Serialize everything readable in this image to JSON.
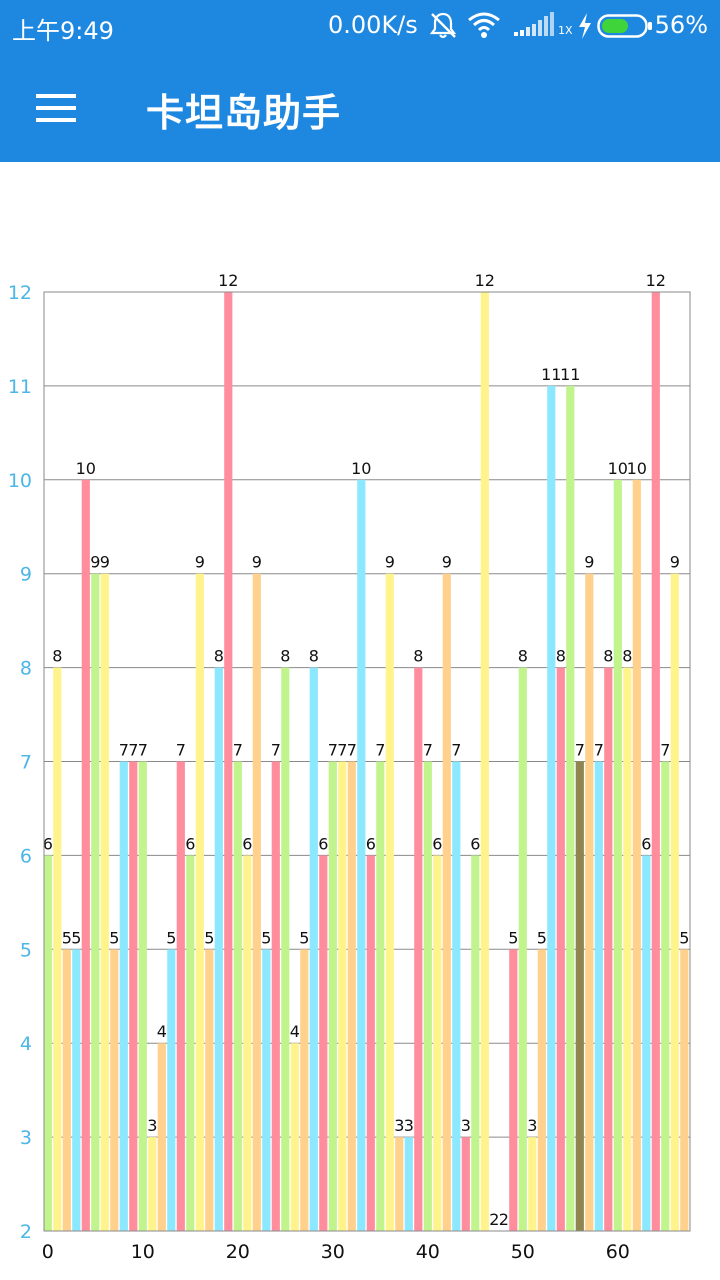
{
  "status_bar": {
    "time": "上午9:49",
    "net_speed": "0.00K/s",
    "signal_label": "1X",
    "battery": "56%",
    "icons": [
      "mute-bell-icon",
      "wifi-icon",
      "signal-icon",
      "charging-icon",
      "battery-icon"
    ]
  },
  "app_bar": {
    "title": "卡坦岛助手",
    "menu_icon": "hamburger-menu-icon",
    "background": "#1e88e0"
  },
  "chart_data": {
    "type": "bar",
    "title": "",
    "xlabel": "",
    "ylabel": "",
    "ylim": [
      2,
      12
    ],
    "yticks": [
      2,
      3,
      4,
      5,
      6,
      7,
      8,
      9,
      10,
      11,
      12
    ],
    "xticks": [
      0,
      10,
      20,
      30,
      40,
      50,
      60
    ],
    "grid": true,
    "show_value_labels": true,
    "x": [
      0,
      1,
      2,
      3,
      4,
      5,
      6,
      7,
      8,
      9,
      10,
      11,
      12,
      13,
      14,
      15,
      16,
      17,
      18,
      19,
      20,
      21,
      22,
      23,
      24,
      25,
      26,
      27,
      28,
      29,
      30,
      31,
      32,
      33,
      34,
      35,
      36,
      37,
      38,
      39,
      40,
      41,
      42,
      43,
      44,
      45,
      46,
      47,
      48,
      49,
      50,
      51,
      52,
      53,
      54,
      55,
      56,
      57,
      58,
      59,
      60,
      61,
      62,
      63,
      64,
      65,
      66,
      67
    ],
    "values": [
      6,
      8,
      5,
      5,
      10,
      9,
      9,
      5,
      7,
      7,
      7,
      3,
      4,
      5,
      7,
      6,
      9,
      5,
      8,
      12,
      7,
      6,
      9,
      5,
      7,
      8,
      4,
      5,
      8,
      6,
      7,
      7,
      7,
      10,
      6,
      7,
      9,
      3,
      3,
      8,
      7,
      6,
      9,
      7,
      3,
      6,
      12,
      2,
      2,
      5,
      8,
      3,
      5,
      11,
      8,
      11,
      7,
      9,
      7,
      8,
      10,
      8,
      10,
      6,
      12,
      7,
      9,
      5
    ],
    "colors": [
      "#c2f48e",
      "#fff38c",
      "#ffd18c",
      "#8ce8ff",
      "#ff8d9e",
      "#c2f48e",
      "#fff38c",
      "#ffd18c",
      "#8ce8ff",
      "#ff8d9e",
      "#c2f48e",
      "#fff38c",
      "#ffd18c",
      "#8ce8ff",
      "#ff8d9e",
      "#c2f48e",
      "#fff38c",
      "#ffd18c",
      "#8ce8ff",
      "#ff8d9e",
      "#c2f48e",
      "#fff38c",
      "#ffd18c",
      "#8ce8ff",
      "#ff8d9e",
      "#c2f48e",
      "#fff38c",
      "#ffd18c",
      "#8ce8ff",
      "#ff8d9e",
      "#c2f48e",
      "#fff38c",
      "#ffd18c",
      "#8ce8ff",
      "#ff8d9e",
      "#c2f48e",
      "#fff38c",
      "#ffd18c",
      "#8ce8ff",
      "#ff8d9e",
      "#c2f48e",
      "#fff38c",
      "#ffd18c",
      "#8ce8ff",
      "#ff8d9e",
      "#c2f48e",
      "#fff38c",
      "#ffd18c",
      "#8ce8ff",
      "#ff8d9e",
      "#c2f48e",
      "#fff38c",
      "#ffd18c",
      "#8ce8ff",
      "#ff8d9e",
      "#c2f48e",
      "#8e8552",
      "#ffd18c",
      "#8ce8ff",
      "#ff8d9e",
      "#c2f48e",
      "#fff38c",
      "#ffd18c",
      "#8ce8ff",
      "#ff8d9e",
      "#c2f48e",
      "#fff38c",
      "#ffd18c"
    ],
    "axis_label_color": "#4db6e6",
    "grid_color": "#8a8a8a"
  }
}
